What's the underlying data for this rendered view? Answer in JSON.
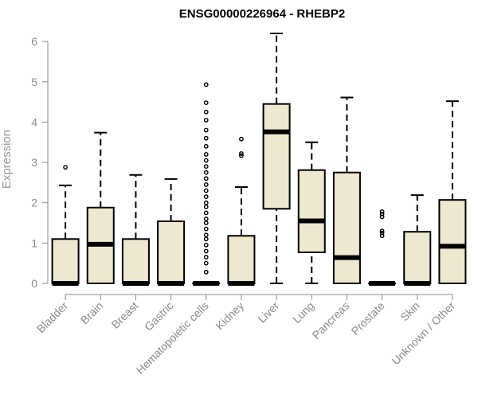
{
  "chart_data": {
    "type": "boxplot",
    "title": "ENSG00000226964 - RHEBP2",
    "xlabel": "",
    "ylabel": "Expression",
    "ylim": [
      0,
      6.2
    ],
    "y_ticks": [
      0,
      1,
      2,
      3,
      4,
      5,
      6
    ],
    "grid": false,
    "box_fill": "#EEE8D0",
    "categories": [
      "Bladder",
      "Brain",
      "Breast",
      "Gastric",
      "Hematopoietic cells",
      "Kidney",
      "Liver",
      "Lung",
      "Pancreas",
      "Prostate",
      "Skin",
      "Unknown / Other"
    ],
    "boxes": [
      {
        "min": 0,
        "q1": 0,
        "median": 0,
        "q3": 1.1,
        "max": 2.43,
        "outliers": [
          2.88
        ]
      },
      {
        "min": 0,
        "q1": 0,
        "median": 0.97,
        "q3": 1.88,
        "max": 3.74,
        "outliers": []
      },
      {
        "min": 0,
        "q1": 0,
        "median": 0,
        "q3": 1.1,
        "max": 2.69,
        "outliers": []
      },
      {
        "min": 0,
        "q1": 0,
        "median": 0,
        "q3": 1.54,
        "max": 2.59,
        "outliers": []
      },
      {
        "min": 0,
        "q1": 0,
        "median": 0,
        "q3": 0,
        "max": 0,
        "outliers": [
          0.28,
          0.5,
          0.65,
          0.8,
          0.95,
          1.1,
          1.2,
          1.35,
          1.5,
          1.6,
          1.75,
          1.9,
          2.0,
          2.15,
          2.3,
          2.45,
          2.6,
          2.75,
          2.9,
          3.05,
          3.2,
          3.4,
          3.6,
          3.8,
          4.05,
          4.25,
          4.48,
          4.93
        ]
      },
      {
        "min": 0,
        "q1": 0,
        "median": 0,
        "q3": 1.18,
        "max": 2.39,
        "outliers": [
          3.17,
          3.22,
          3.58
        ]
      },
      {
        "min": 0,
        "q1": 1.85,
        "median": 3.76,
        "q3": 4.45,
        "max": 6.2,
        "outliers": []
      },
      {
        "min": 0,
        "q1": 0.77,
        "median": 1.55,
        "q3": 2.81,
        "max": 3.5,
        "outliers": []
      },
      {
        "min": 0,
        "q1": 0,
        "median": 0.64,
        "q3": 2.75,
        "max": 4.61,
        "outliers": []
      },
      {
        "min": 0,
        "q1": 0,
        "median": 0,
        "q3": 0,
        "max": 0,
        "outliers": [
          1.18,
          1.25,
          1.3,
          1.65,
          1.72,
          1.78
        ]
      },
      {
        "min": 0,
        "q1": 0,
        "median": 0,
        "q3": 1.28,
        "max": 2.19,
        "outliers": []
      },
      {
        "min": 0,
        "q1": 0,
        "median": 0.92,
        "q3": 2.07,
        "max": 4.52,
        "outliers": []
      }
    ]
  }
}
